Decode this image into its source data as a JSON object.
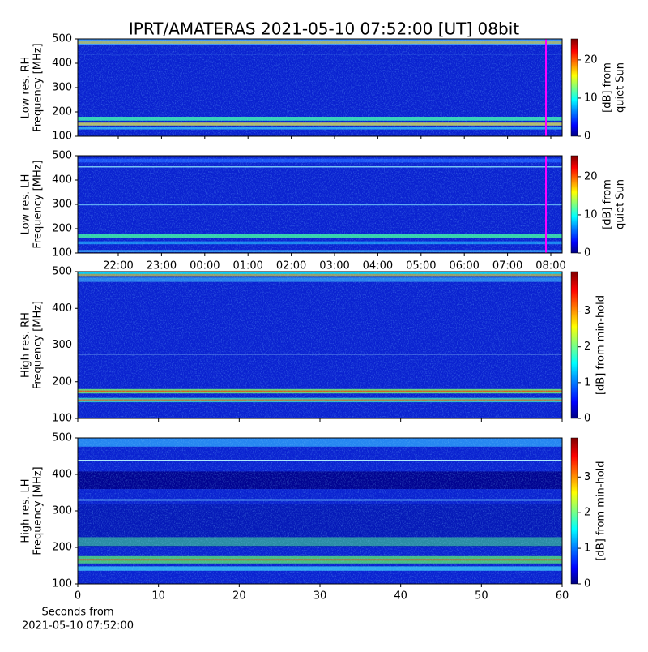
{
  "chart_data": [
    {
      "type": "spectrogram",
      "title": "IPRT/AMATERAS 2021-05-10 07:52:00 [UT]   08bit",
      "ylabel": [
        "Low res. RH",
        "Frequency [MHz]"
      ],
      "ylim": [
        100,
        500
      ],
      "yticks": [
        100,
        200,
        300,
        400,
        500
      ],
      "colorbar_label": [
        "[dB] from",
        "quiet Sun"
      ],
      "clim": [
        0,
        25.5
      ],
      "cticks": [
        0,
        10,
        20
      ]
    },
    {
      "type": "spectrogram",
      "ylabel": [
        "Low res. LH",
        "Frequency [MHz]"
      ],
      "ylim": [
        100,
        500
      ],
      "yticks": [
        100,
        200,
        300,
        400,
        500
      ],
      "categories": [
        "22:00",
        "23:00",
        "00:00",
        "01:00",
        "02:00",
        "03:00",
        "04:00",
        "05:00",
        "06:00",
        "07:00",
        "08:00"
      ],
      "colorbar_label": [
        "[dB] from",
        "quiet Sun"
      ],
      "clim": [
        0,
        25.5
      ],
      "cticks": [
        0,
        10,
        20
      ]
    },
    {
      "type": "spectrogram",
      "ylabel": [
        "High res. RH",
        "Frequency [MHz]"
      ],
      "ylim": [
        100,
        500
      ],
      "yticks": [
        100,
        200,
        300,
        400,
        500
      ],
      "xlim": [
        0,
        60
      ],
      "colorbar_label": [
        "[dB] from min-hold"
      ],
      "clim": [
        0,
        4.1
      ],
      "cticks": [
        0,
        1,
        2,
        3
      ]
    },
    {
      "type": "spectrogram",
      "ylabel": [
        "High res. LH",
        "Frequency [MHz]"
      ],
      "ylim": [
        100,
        500
      ],
      "yticks": [
        100,
        200,
        300,
        400,
        500
      ],
      "xlim": [
        0,
        60
      ],
      "xticks": [
        0,
        10,
        20,
        30,
        40,
        50,
        60
      ],
      "xlabel": [
        "Seconds from",
        "2021-05-10 07:52:00"
      ],
      "colorbar_label": [
        "[dB] from min-hold"
      ],
      "clim": [
        0,
        4.1
      ],
      "cticks": [
        0,
        1,
        2,
        3
      ]
    }
  ]
}
